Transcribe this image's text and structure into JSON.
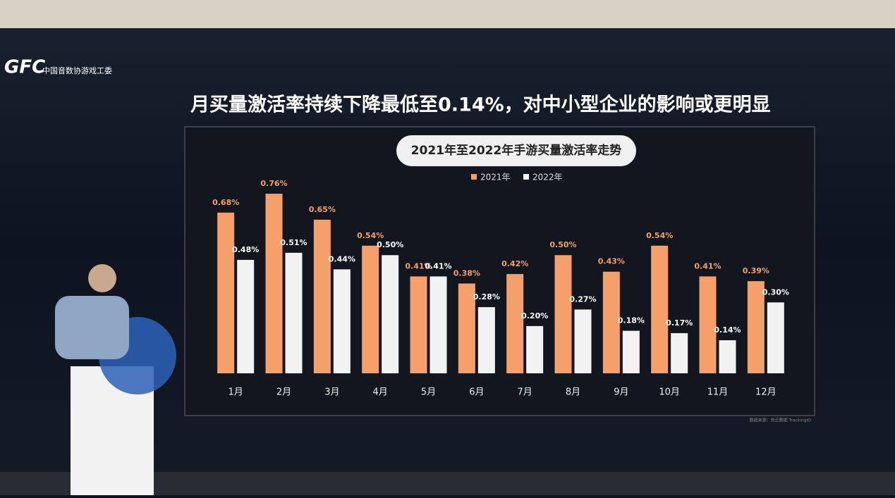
{
  "logo": {
    "mark": "GFC",
    "text": "中国音数协游戏工委"
  },
  "headline": "月买量激活率持续下降最低至0.14%，对中小型企业的影响或更明显",
  "chart_data": {
    "type": "bar",
    "title": "2021年至2022年手游买量激活率走势",
    "categories": [
      "1月",
      "2月",
      "3月",
      "4月",
      "5月",
      "6月",
      "7月",
      "8月",
      "9月",
      "10月",
      "11月",
      "12月"
    ],
    "series": [
      {
        "name": "2021年",
        "color": "#f5a06a",
        "values": [
          0.68,
          0.76,
          0.65,
          0.54,
          0.41,
          0.38,
          0.42,
          0.5,
          0.43,
          0.54,
          0.41,
          0.39
        ],
        "value_labels": [
          "0.68%",
          "0.76%",
          "0.65%",
          "0.54%",
          "0.41%",
          "0.38%",
          "0.42%",
          "0.50%",
          "0.43%",
          "0.54%",
          "0.41%",
          "0.39%"
        ]
      },
      {
        "name": "2022年",
        "color": "#f2f2f2",
        "values": [
          0.48,
          0.51,
          0.44,
          0.5,
          0.41,
          0.28,
          0.2,
          0.27,
          0.18,
          0.17,
          0.14,
          0.3
        ],
        "value_labels": [
          "0.48%",
          "0.51%",
          "0.44%",
          "0.50%",
          "0.41%",
          "0.28%",
          "0.20%",
          "0.27%",
          "0.18%",
          "0.17%",
          "0.14%",
          "0.30%"
        ]
      }
    ],
    "source": "数据来源：热云数据 TrackingIO"
  }
}
